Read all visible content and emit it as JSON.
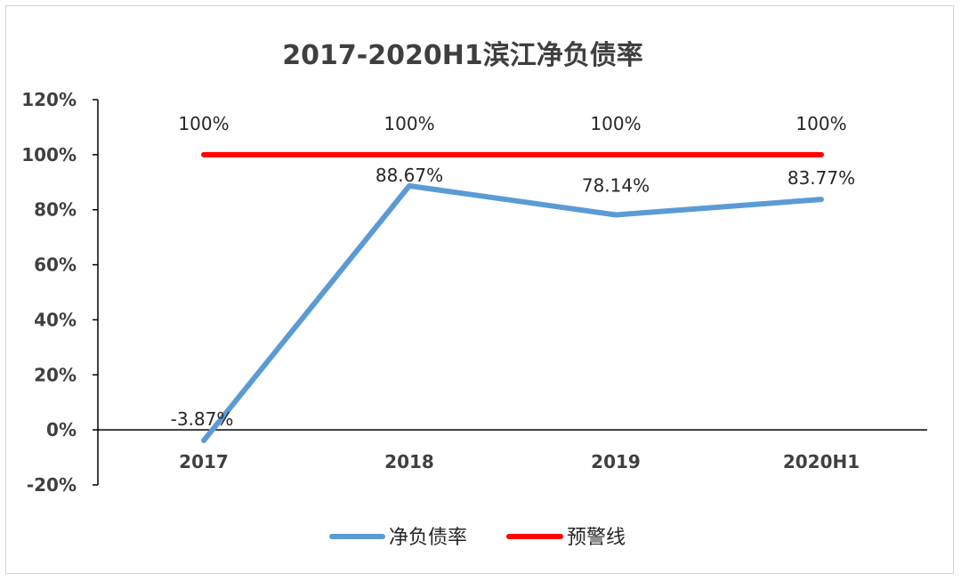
{
  "chart_data": {
    "type": "line",
    "title": "2017-2020H1滨江净负债率",
    "categories": [
      "2017",
      "2018",
      "2019",
      "2020H1"
    ],
    "series": [
      {
        "name": "净负债率",
        "values": [
          -3.87,
          88.67,
          78.14,
          83.77
        ],
        "labels": [
          "-3.87%",
          "88.67%",
          "78.14%",
          "83.77%"
        ],
        "color": "#5b9bd5"
      },
      {
        "name": "预警线",
        "values": [
          100,
          100,
          100,
          100
        ],
        "labels": [
          "100%",
          "100%",
          "100%",
          "100%"
        ],
        "color": "#ff0000"
      }
    ],
    "ylim": [
      -20,
      120
    ],
    "yticks": [
      "120%",
      "100%",
      "80%",
      "60%",
      "40%",
      "20%",
      "0%",
      "-20%"
    ],
    "ytick_values": [
      120,
      100,
      80,
      60,
      40,
      20,
      0,
      -20
    ],
    "xlabel": "",
    "ylabel": "",
    "grid": false,
    "legend_position": "bottom"
  }
}
